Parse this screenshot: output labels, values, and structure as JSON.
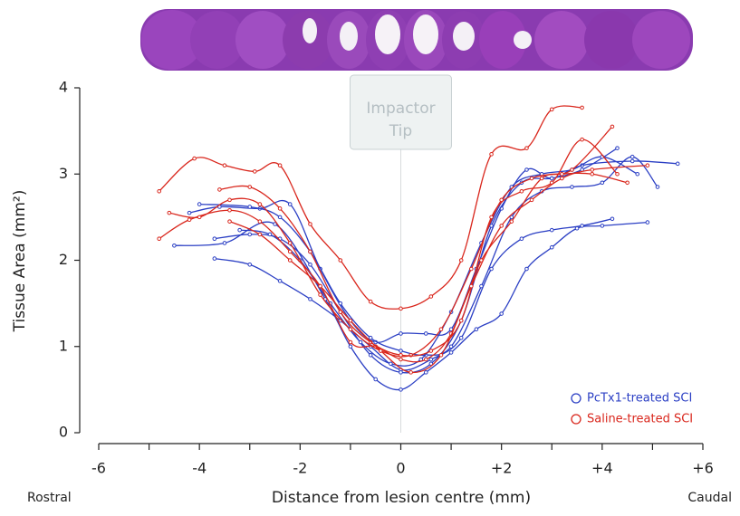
{
  "chart_data": {
    "type": "line",
    "ylabel": "Tissue Area (mm²)",
    "xlabel": "Distance from lesion centre (mm)",
    "x_end_labels": {
      "left": "Rostral",
      "right": "Caudal"
    },
    "annotation": [
      "Impactor",
      "Tip"
    ],
    "xlim": [
      -6,
      6
    ],
    "ylim": [
      0,
      4
    ],
    "xticks": [
      -6,
      -4,
      -2,
      0,
      {
        "value": 2,
        "label": "+2"
      },
      {
        "value": 4,
        "label": "+4"
      },
      {
        "value": 6,
        "label": "+6"
      }
    ],
    "xminor_ticks": [
      -5,
      -3,
      -1,
      1,
      3,
      5
    ],
    "yticks": [
      0,
      1,
      2,
      3,
      4
    ],
    "legend": "lower right",
    "groups": [
      {
        "name": "PcTx1-treated SCI",
        "color": "#2b3fc4",
        "lines": [
          {
            "x": [
              -4.5,
              -3.5,
              -2.5,
              -1.5,
              -1,
              -0.5,
              0,
              0.5,
              1,
              1.5,
              2,
              2.5,
              3,
              3.5,
              4,
              4.9
            ],
            "y": [
              2.17,
              2.2,
              2.42,
              1.55,
              1.0,
              0.62,
              0.5,
              0.7,
              0.93,
              1.2,
              1.38,
              1.9,
              2.15,
              2.37,
              2.4,
              2.44
            ]
          },
          {
            "x": [
              -3.7,
              -3,
              -2.4,
              -1.8,
              -1.2,
              -0.6,
              0,
              0.6,
              1.2,
              1.8,
              2.4,
              3,
              3.6,
              4.2
            ],
            "y": [
              2.02,
              1.95,
              1.76,
              1.55,
              1.3,
              1.0,
              0.73,
              0.85,
              1.1,
              1.9,
              2.25,
              2.35,
              2.4,
              2.48
            ]
          },
          {
            "x": [
              -4.2,
              -3.6,
              -2.8,
              -2.2,
              -1.6,
              -1,
              -0.5,
              0,
              0.5,
              1,
              1.5,
              2,
              2.5,
              3,
              3.6,
              4.6,
              5.5
            ],
            "y": [
              2.55,
              2.62,
              2.6,
              2.65,
              1.9,
              1.3,
              1.05,
              1.15,
              1.15,
              1.2,
              1.9,
              2.6,
              3.05,
              2.95,
              3.1,
              3.15,
              3.12
            ]
          },
          {
            "x": [
              -4,
              -3,
              -2.4,
              -1.8,
              -1.2,
              -0.6,
              0,
              0.5,
              1,
              1.6,
              2.2,
              2.8,
              3.4,
              4,
              4.6,
              5.1
            ],
            "y": [
              2.65,
              2.62,
              2.5,
              2.1,
              1.5,
              1.1,
              0.95,
              0.9,
              1.0,
              1.7,
              2.5,
              2.8,
              2.85,
              2.9,
              3.2,
              2.85
            ]
          },
          {
            "x": [
              -3.7,
              -3,
              -2.4,
              -1.8,
              -1.2,
              -0.6,
              0,
              0.6,
              1.2,
              1.8,
              2.4,
              3,
              3.6,
              4.3
            ],
            "y": [
              2.25,
              2.3,
              2.25,
              1.95,
              1.4,
              0.9,
              0.7,
              0.8,
              1.3,
              2.4,
              2.9,
              2.95,
              3.05,
              3.3
            ]
          },
          {
            "x": [
              -3.2,
              -2.6,
              -2,
              -1.4,
              -0.8,
              -0.2,
              0.4,
              1,
              1.6,
              2.2,
              2.8,
              3.4,
              4,
              4.7
            ],
            "y": [
              2.35,
              2.3,
              2.0,
              1.5,
              1.05,
              0.8,
              0.85,
              1.4,
              2.2,
              2.85,
              3.0,
              3.05,
              3.2,
              3.0
            ]
          }
        ]
      },
      {
        "name": "Saline-treated SCI",
        "color": "#d9261c",
        "lines": [
          {
            "x": [
              -4.8,
              -4.1,
              -3.5,
              -2.9,
              -2.4,
              -1.8,
              -1.2,
              -0.6,
              0,
              0.6,
              1.2,
              1.8,
              2.5,
              3,
              3.6
            ],
            "y": [
              2.8,
              3.18,
              3.1,
              3.03,
              3.1,
              2.42,
              2.0,
              1.52,
              1.44,
              1.58,
              2.0,
              3.23,
              3.3,
              3.75,
              3.77
            ]
          },
          {
            "x": [
              -4.8,
              -4.2,
              -3.4,
              -2.8,
              -2.2,
              -1.6,
              -1,
              -0.5,
              0,
              0.5,
              1,
              1.6,
              2.2,
              2.8,
              3.4,
              4.2
            ],
            "y": [
              2.25,
              2.47,
              2.58,
              2.45,
              2.1,
              1.7,
              1.05,
              1.0,
              0.85,
              0.85,
              1.15,
              2.0,
              2.45,
              2.95,
              3.05,
              3.55
            ]
          },
          {
            "x": [
              -4.6,
              -4,
              -3.4,
              -2.8,
              -2.2,
              -1.6,
              -1,
              -0.4,
              0.2,
              0.8,
              1.4,
              2,
              2.6,
              3.2,
              3.8,
              4.5
            ],
            "y": [
              2.55,
              2.5,
              2.7,
              2.65,
              2.2,
              1.6,
              1.2,
              0.95,
              0.9,
              1.2,
              1.9,
              2.7,
              2.95,
              3.0,
              3.0,
              2.9
            ]
          },
          {
            "x": [
              -3.6,
              -3,
              -2.4,
              -1.8,
              -1.2,
              -0.6,
              0,
              0.6,
              1.2,
              1.8,
              2.4,
              3,
              3.6,
              4.3
            ],
            "y": [
              2.82,
              2.85,
              2.6,
              2.1,
              1.4,
              1.05,
              0.9,
              0.95,
              1.3,
              2.5,
              2.8,
              2.9,
              3.4,
              3.0
            ]
          },
          {
            "x": [
              -3.4,
              -2.8,
              -2.2,
              -1.6,
              -1,
              -0.4,
              0.2,
              0.8,
              1.4,
              2,
              2.6,
              3.2,
              3.8,
              4.9
            ],
            "y": [
              2.45,
              2.3,
              2.0,
              1.7,
              1.3,
              0.95,
              0.7,
              0.9,
              1.7,
              2.4,
              2.7,
              2.95,
              3.05,
              3.1
            ]
          }
        ]
      }
    ]
  }
}
